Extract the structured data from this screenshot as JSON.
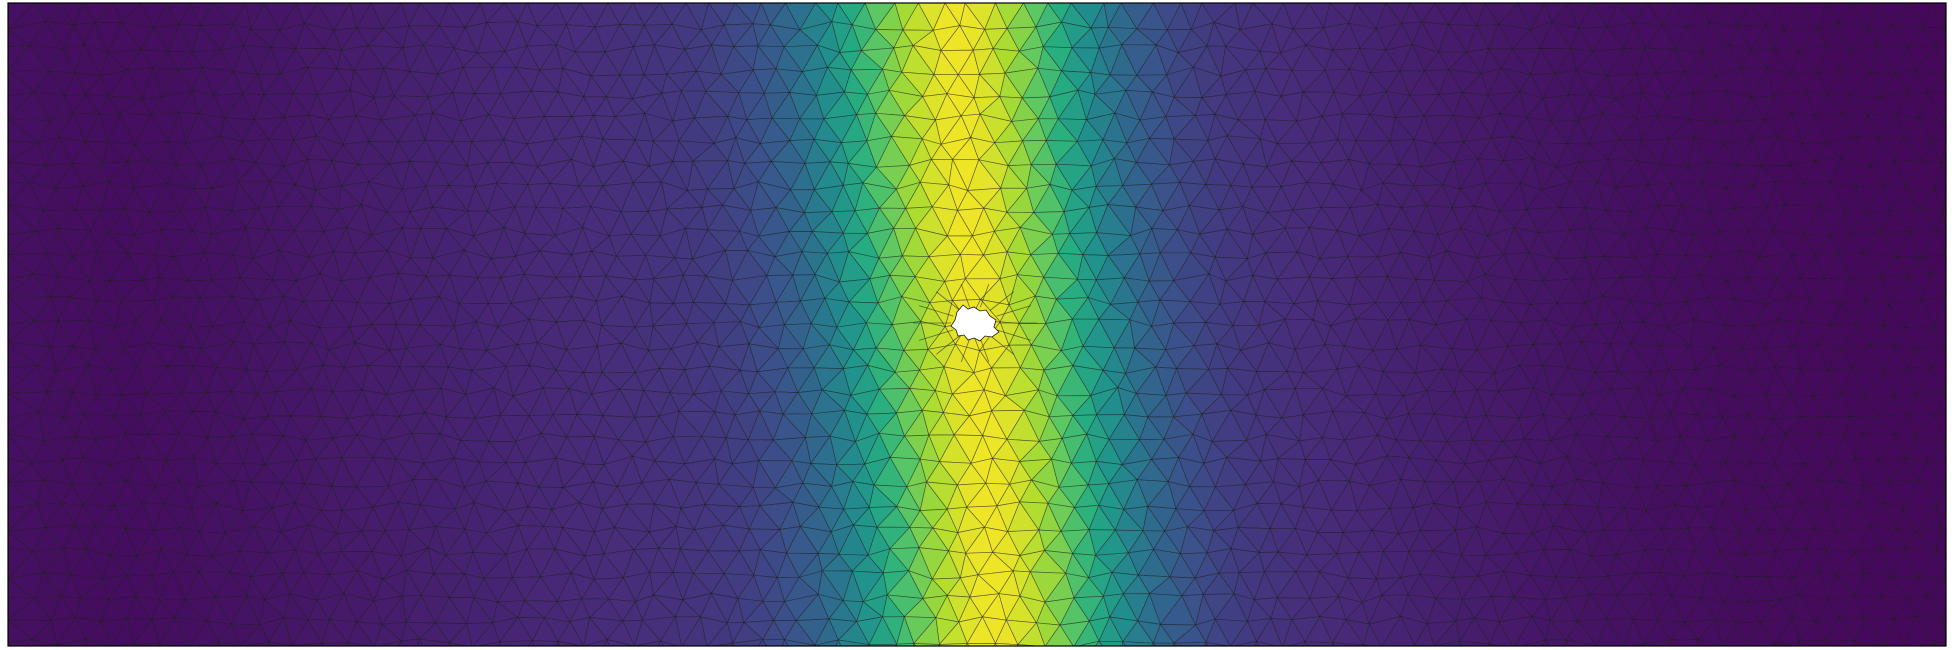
{
  "figure": {
    "kind": "finite-element-mesh-field",
    "colormap": "viridis",
    "colors": {
      "viridis_low": "#440154",
      "viridis_mid": "#21908d",
      "viridis_high": "#fde725",
      "mesh_edge": "#1a1a1a",
      "hole_fill": "#ffffff",
      "background": "#ffffff"
    },
    "field_peak_level": 0.8,
    "field_min_level": 0.02
  }
}
